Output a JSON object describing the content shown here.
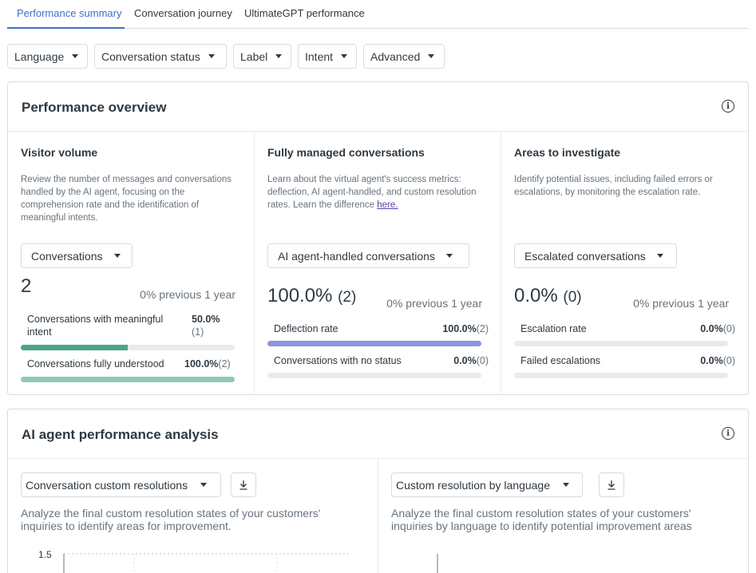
{
  "tabs": [
    {
      "label": "Performance summary",
      "active": true
    },
    {
      "label": "Conversation journey",
      "active": false
    },
    {
      "label": "UltimateGPT performance",
      "active": false
    }
  ],
  "filters": [
    "Language",
    "Conversation status",
    "Label",
    "Intent",
    "Advanced"
  ],
  "overview": {
    "title": "Performance overview",
    "info_icon": "info-icon",
    "columns": [
      {
        "title": "Visitor volume",
        "description": "Review the number of messages and conversations handled by the AI agent, focusing on the comprehension rate and the identification of meaningful intents.",
        "dropdown": "Conversations",
        "big_value": "2",
        "big_count": "",
        "previous": "0% previous 1 year",
        "metrics": [
          {
            "label": "Conversations with meaningful intent",
            "value": "50.0%",
            "count": "(1)",
            "fraction": 0.5,
            "color": "#4aa48a"
          },
          {
            "label": "Conversations fully understood",
            "value": "100.0%",
            "count": "(2)",
            "fraction": 1.0,
            "color": "#90c9b5"
          }
        ]
      },
      {
        "title": "Fully managed conversations",
        "description": "Learn about the virtual agent's success metrics: deflection, AI agent-handled, and custom resolution rates. Learn the difference ",
        "link": "here.",
        "dropdown": "AI agent-handled conversations",
        "big_value": "100.0%",
        "big_count": "(2)",
        "previous": "0% previous 1 year",
        "metrics": [
          {
            "label": "Deflection rate",
            "value": "100.0%",
            "count": "(2)",
            "fraction": 1.0,
            "color": "#8b94de"
          },
          {
            "label": "Conversations with no status",
            "value": "0.0%",
            "count": "(0)",
            "fraction": 0.0,
            "color": "#8b94de"
          }
        ]
      },
      {
        "title": "Areas to investigate",
        "description": "Identify potential issues, including failed errors or escalations, by monitoring the escalation rate.",
        "dropdown": "Escalated conversations",
        "big_value": "0.0%",
        "big_count": "(0)",
        "previous": "0% previous 1 year",
        "metrics": [
          {
            "label": "Escalation rate",
            "value": "0.0%",
            "count": "(0)",
            "fraction": 0.0,
            "color": "#e08a8a"
          },
          {
            "label": "Failed escalations",
            "value": "0.0%",
            "count": "(0)",
            "fraction": 0.0,
            "color": "#e08a8a"
          }
        ]
      }
    ]
  },
  "analysis": {
    "title": "AI agent performance analysis",
    "left": {
      "dropdown": "Conversation custom resolutions",
      "description": "Analyze the final custom resolution states of your customers' inquiries to identify areas for improvement.",
      "y_tick": "1.5"
    },
    "right": {
      "dropdown": "Custom resolution by language",
      "description": "Analyze the final custom resolution states of your customers' inquiries by language to identify potential improvement areas"
    }
  }
}
